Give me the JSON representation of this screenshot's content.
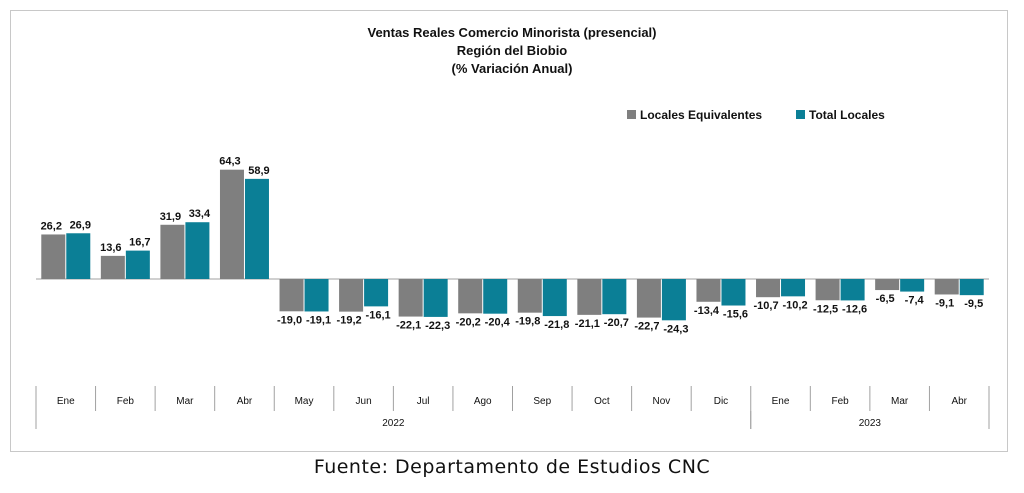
{
  "chart_data": {
    "type": "bar",
    "title_lines": [
      "Ventas Reales Comercio Minorista (presencial)",
      "Región del Biobio",
      "(% Variación Anual)"
    ],
    "categories": [
      "Ene",
      "Feb",
      "Mar",
      "Abr",
      "May",
      "Jun",
      "Jul",
      "Ago",
      "Sep",
      "Oct",
      "Nov",
      "Dic",
      "Ene",
      "Feb",
      "Mar",
      "Abr"
    ],
    "year_groups": [
      {
        "label": "2022",
        "start": 0,
        "end": 11
      },
      {
        "label": "2023",
        "start": 12,
        "end": 15
      }
    ],
    "series": [
      {
        "name": "Locales Equivalentes",
        "color": "#7f7f7f",
        "values": [
          26.2,
          13.6,
          31.9,
          64.3,
          -19.0,
          -19.2,
          -22.1,
          -20.2,
          -19.8,
          -21.1,
          -22.7,
          -13.4,
          -10.7,
          -12.5,
          -6.5,
          -9.1
        ],
        "labels": [
          "26,2",
          "13,6",
          "31,9",
          "64,3",
          "-19,0",
          "-19,2",
          "-22,1",
          "-20,2",
          "-19,8",
          "-21,1",
          "-22,7",
          "-13,4",
          "-10,7",
          "-12,5",
          "-6,5",
          "-9,1"
        ]
      },
      {
        "name": "Total Locales",
        "color": "#0b7f96",
        "values": [
          26.9,
          16.7,
          33.4,
          58.9,
          -19.1,
          -16.1,
          -22.3,
          -20.4,
          -21.8,
          -20.7,
          -24.3,
          -15.6,
          -10.2,
          -12.6,
          -7.4,
          -9.5
        ],
        "labels": [
          "26,9",
          "16,7",
          "33,4",
          "58,9",
          "-19,1",
          "-16,1",
          "-22,3",
          "-20,4",
          "-21,8",
          "-20,7",
          "-24,3",
          "-15,6",
          "-10,2",
          "-12,6",
          "-7,4",
          "-9,5"
        ]
      }
    ],
    "legend_position": "top-right",
    "gridlines": false
  },
  "footer": {
    "source": "Fuente:  Departamento  de Estudios  CNC"
  }
}
